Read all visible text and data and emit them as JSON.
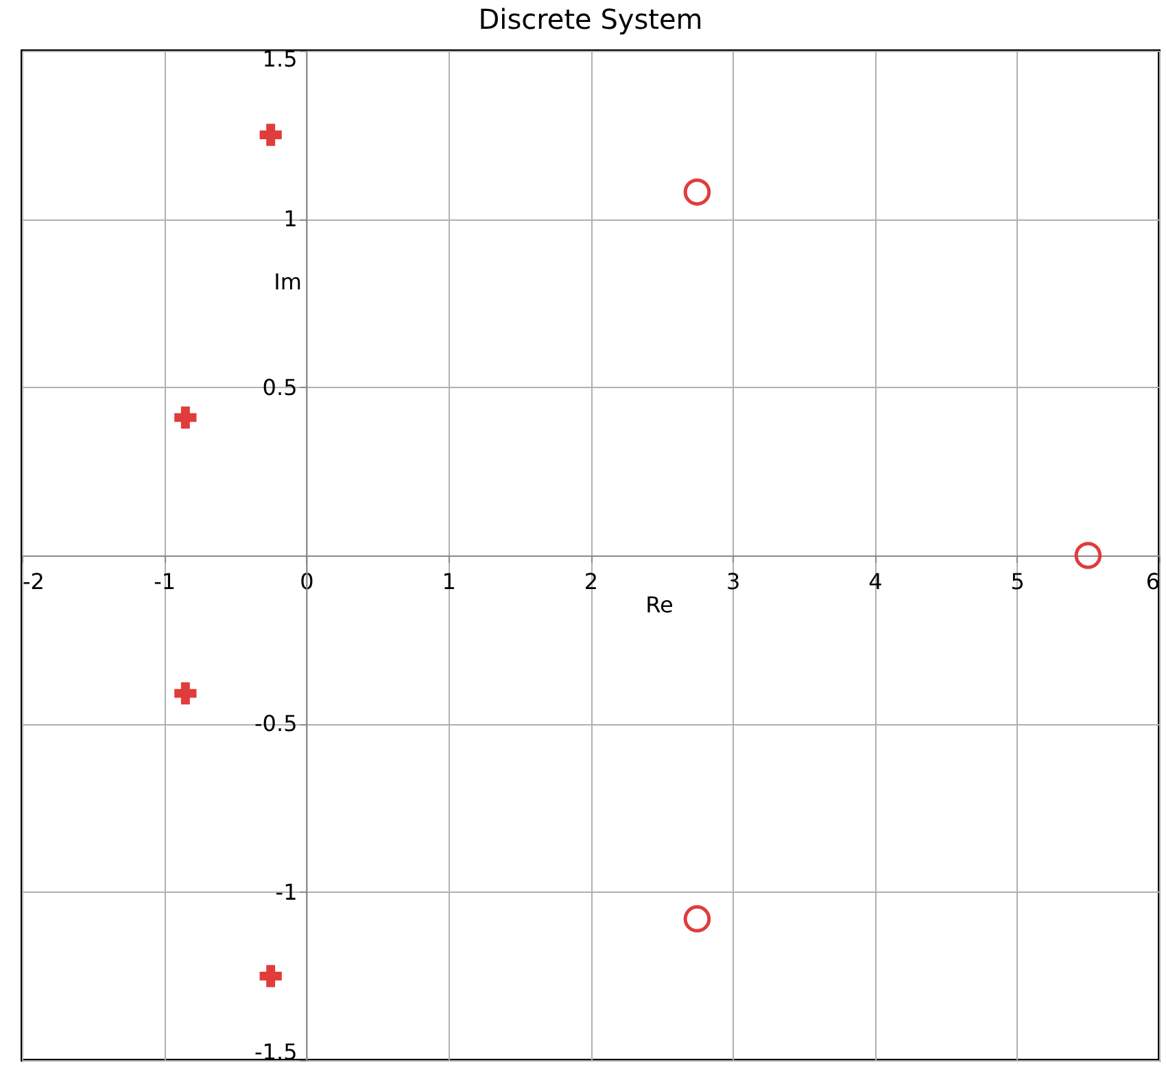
{
  "chart_data": {
    "type": "scatter",
    "title": "Discrete System",
    "xlabel": "Re",
    "ylabel": "Im",
    "xlim": [
      -2,
      6
    ],
    "ylim": [
      -1.5,
      1.5
    ],
    "xticks": [
      -2,
      -1,
      0,
      1,
      2,
      3,
      4,
      5,
      6
    ],
    "yticks": [
      -1.5,
      -1,
      -0.5,
      0.5,
      1,
      1.5
    ],
    "grid": true,
    "series": [
      {
        "color": "#e03c3c",
        "marker": "cross",
        "x": [
          -0.25,
          -0.85,
          -0.85,
          -0.25
        ],
        "values": [
          1.25,
          0.41,
          -0.41,
          -1.25
        ]
      },
      {
        "color": "#e03c3c",
        "marker": "circle",
        "x": [
          2.75,
          5.5,
          2.75
        ],
        "values": [
          1.08,
          0,
          -1.08
        ]
      }
    ]
  }
}
